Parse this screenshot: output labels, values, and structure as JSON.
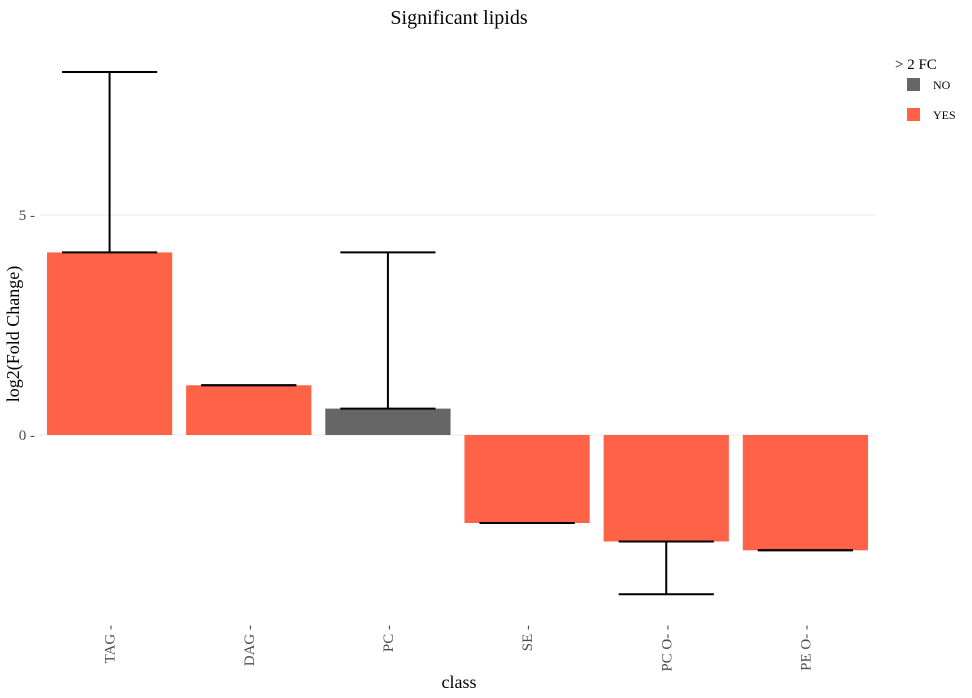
{
  "chart_data": {
    "type": "bar",
    "title": "Significant lipids",
    "xlabel": "class",
    "ylabel": "log2(Fold Change)",
    "categories": [
      "TAG",
      "DAG",
      "PC",
      "SE",
      "PC O-",
      "PE O-"
    ],
    "values": [
      4.15,
      1.13,
      0.6,
      -2.0,
      -2.42,
      -2.62
    ],
    "error_bars": [
      {
        "low": 4.15,
        "high": 8.25
      },
      {
        "low": 1.13,
        "high": 1.13
      },
      {
        "low": 0.6,
        "high": 4.15
      },
      {
        "low": -2.0,
        "high": -2.0
      },
      {
        "low": -3.62,
        "high": -2.42
      },
      {
        "low": -2.62,
        "high": -2.62
      }
    ],
    "fill_group": [
      "YES",
      "YES",
      "NO",
      "YES",
      "YES",
      "YES"
    ],
    "yticks": [
      0,
      5
    ],
    "ylim": [
      -4.2,
      9.0
    ],
    "grid": true,
    "legend": {
      "title": "> 2 FC",
      "position": "top-right",
      "entries": [
        {
          "label": "NO",
          "color": "#666666"
        },
        {
          "label": "YES",
          "color": "#FF6347"
        }
      ]
    }
  }
}
